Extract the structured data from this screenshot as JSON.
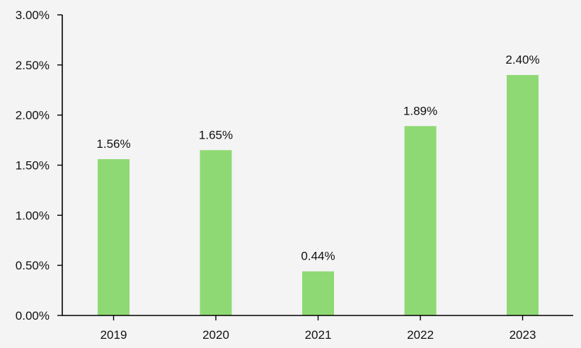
{
  "chart_data": {
    "type": "bar",
    "title": "",
    "xlabel": "",
    "ylabel": "",
    "categories": [
      "2019",
      "2020",
      "2021",
      "2022",
      "2023"
    ],
    "values": [
      1.56,
      1.65,
      0.44,
      1.89,
      2.4
    ],
    "data_labels": [
      "1.56%",
      "1.65%",
      "0.44%",
      "1.89%",
      "2.40%"
    ],
    "ylim": [
      0,
      3.0
    ],
    "yticks": [
      0,
      0.5,
      1.0,
      1.5,
      2.0,
      2.5,
      3.0
    ],
    "ytick_labels": [
      "0.00%",
      "0.50%",
      "1.00%",
      "1.50%",
      "2.00%",
      "2.50%",
      "3.00%"
    ],
    "grid": false,
    "legend": "none",
    "colors": {
      "bar": "#8fd974",
      "background": "#f4f4f4",
      "axis": "#000000",
      "text": "#111111"
    }
  }
}
